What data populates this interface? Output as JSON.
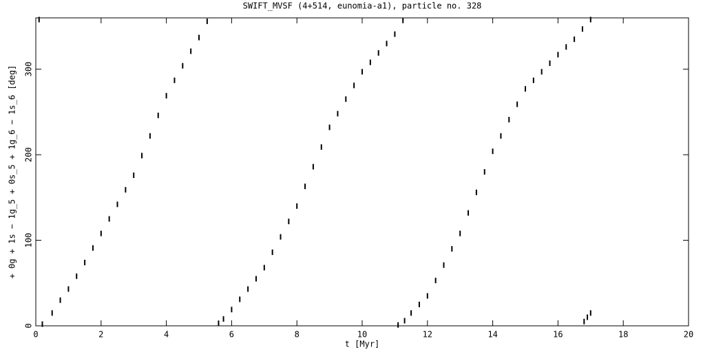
{
  "chart_data": {
    "type": "scatter",
    "title": "SWIFT_MVSF (4+514, eunomia-a1), particle no. 328",
    "x_label": "t [Myr]",
    "y_label": "+ 0g + 1s − 1g_5 + 0s_5 + 1g_6 − 1s_6 [deg]",
    "color": "#000000",
    "xlim": [
      0,
      20
    ],
    "ylim": [
      0,
      360
    ],
    "xticks": [
      0,
      2,
      4,
      6,
      8,
      10,
      12,
      14,
      16,
      18,
      20
    ],
    "yticks": [
      0,
      100,
      200,
      300
    ],
    "x": [
      0.1,
      0.2,
      0.5,
      0.75,
      1,
      1.25,
      1.5,
      1.75,
      2,
      2.25,
      2.5,
      2.75,
      3,
      3.25,
      3.5,
      3.75,
      4,
      4.25,
      4.5,
      4.75,
      5,
      5.25,
      5.6,
      5.75,
      6,
      6.25,
      6.5,
      6.75,
      7,
      7.25,
      7.5,
      7.75,
      8,
      8.25,
      8.5,
      8.75,
      9,
      9.25,
      9.5,
      9.75,
      10,
      10.25,
      10.5,
      10.75,
      11,
      11.25,
      11.1,
      11.3,
      11.5,
      11.75,
      12,
      12.25,
      12.5,
      12.75,
      13,
      13.25,
      13.5,
      13.75,
      14,
      14.25,
      14.5,
      14.75,
      15,
      15.25,
      15.5,
      15.75,
      16,
      16.25,
      16.5,
      16.75,
      17,
      16.8,
      16.9,
      17
    ],
    "y": [
      358,
      2,
      15,
      30,
      43,
      58,
      74,
      91,
      108,
      125,
      142,
      159,
      176,
      199,
      222,
      246,
      269,
      287,
      304,
      321,
      337,
      356,
      3,
      8,
      19,
      31,
      43,
      55,
      68,
      86,
      104,
      122,
      140,
      163,
      186,
      209,
      232,
      248,
      265,
      281,
      297,
      308,
      319,
      330,
      341,
      357,
      1,
      6,
      15,
      25,
      35,
      53,
      71,
      90,
      108,
      132,
      156,
      180,
      204,
      222,
      241,
      259,
      277,
      287,
      297,
      307,
      317,
      326,
      335,
      347,
      358,
      5,
      10,
      15
    ]
  }
}
